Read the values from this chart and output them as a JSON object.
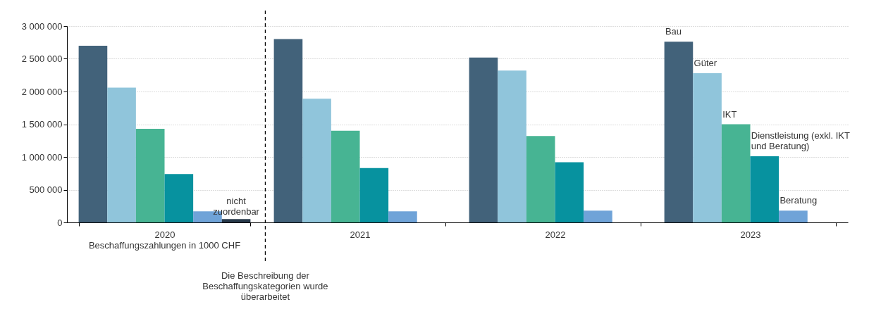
{
  "chart_data": {
    "type": "bar",
    "categories": [
      "2020",
      "2021",
      "2022",
      "2023"
    ],
    "series": [
      {
        "name": "Bau",
        "color": "#42627a",
        "values": [
          2700000,
          2800000,
          2520000,
          2760000
        ]
      },
      {
        "name": "Güter",
        "color": "#90c5db",
        "values": [
          2060000,
          1890000,
          2320000,
          2280000
        ]
      },
      {
        "name": "IKT",
        "color": "#47b493",
        "values": [
          1430000,
          1400000,
          1320000,
          1500000
        ]
      },
      {
        "name": "Dienstleistung (exkl. IKT\nund Beratung)",
        "color": "#07929f",
        "values": [
          740000,
          830000,
          920000,
          1010000
        ]
      },
      {
        "name": "Beratung",
        "color": "#6fa3d8",
        "values": [
          170000,
          170000,
          180000,
          180000
        ]
      },
      {
        "name": "nicht\nzuordenbar",
        "color": "#27394a",
        "values": [
          50000,
          null,
          null,
          null
        ]
      }
    ],
    "ylim": [
      0,
      3000000
    ],
    "yticks": [
      0,
      500000,
      1000000,
      1500000,
      2000000,
      2500000,
      3000000
    ],
    "grid": "y",
    "legend": false,
    "ref_lines": [
      {
        "axis": "x",
        "value": "2021",
        "label": "Die Beschreibung der\nBeschaffungskategorien wurde\nüberarbeitet",
        "line_style": "dashed"
      }
    ],
    "annotations": [
      "Beschaffungszahlungen in 1000 CHF"
    ]
  }
}
